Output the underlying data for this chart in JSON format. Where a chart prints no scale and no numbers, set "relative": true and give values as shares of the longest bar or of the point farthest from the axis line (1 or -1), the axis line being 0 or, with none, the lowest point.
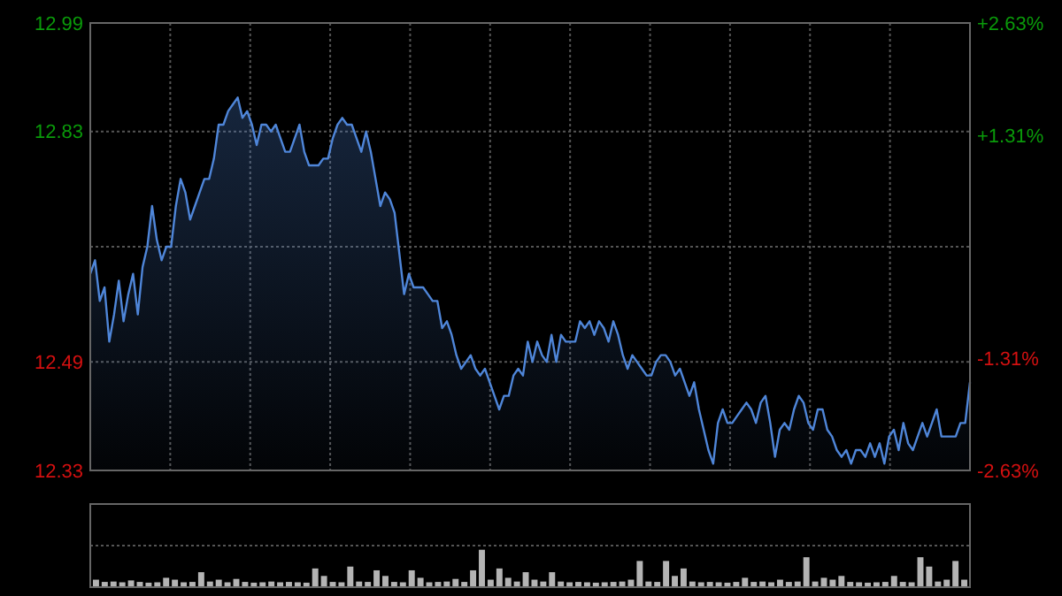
{
  "chart_data": [
    {
      "type": "area",
      "categories": [
        null,
        null,
        null,
        null,
        null,
        null,
        null,
        null,
        null,
        null,
        null,
        null,
        null,
        null,
        null,
        null,
        null,
        null,
        null,
        null,
        null,
        null,
        null,
        null,
        null,
        null,
        null,
        null,
        null,
        null,
        null,
        null,
        null,
        null,
        null,
        null,
        null,
        null,
        null,
        null,
        null,
        null,
        null,
        null,
        null,
        null,
        null,
        null,
        null,
        null,
        null,
        null,
        null,
        null,
        null,
        null,
        null,
        null,
        null,
        null,
        null,
        null,
        null,
        null,
        null,
        null,
        null,
        null,
        null,
        null,
        null,
        null,
        null,
        null,
        null,
        null,
        null,
        null,
        null,
        null,
        null,
        null,
        null,
        null,
        null,
        null,
        null,
        null,
        null,
        null,
        null,
        null,
        null,
        null,
        null,
        null,
        null,
        null,
        null,
        null,
        null,
        null,
        null,
        null,
        null,
        null,
        null,
        null,
        null,
        null,
        null,
        null,
        null,
        null,
        null,
        null,
        null,
        null,
        null,
        null,
        null,
        null,
        null,
        null,
        null,
        null,
        null,
        null,
        null,
        null,
        null,
        null,
        null,
        null,
        null,
        null,
        null,
        null,
        null,
        null,
        null,
        null,
        null,
        null,
        null,
        null,
        null,
        null,
        null,
        null,
        null,
        null,
        null,
        null,
        null,
        null,
        null,
        null,
        null,
        null,
        null,
        null,
        null,
        null,
        null,
        null,
        null,
        null,
        null,
        null,
        null,
        null,
        null,
        null,
        null,
        null,
        null,
        null,
        null,
        null,
        null,
        null,
        null,
        null,
        null,
        null
      ],
      "color": "#4f86d9",
      "values": [
        12.62,
        12.64,
        12.58,
        12.6,
        12.52,
        12.56,
        12.61,
        12.55,
        12.59,
        12.62,
        12.56,
        12.63,
        12.66,
        12.72,
        12.67,
        12.64,
        12.66,
        12.66,
        12.72,
        12.76,
        12.74,
        12.7,
        12.72,
        12.74,
        12.76,
        12.76,
        12.79,
        12.84,
        12.84,
        12.86,
        12.87,
        12.88,
        12.85,
        12.86,
        12.84,
        12.81,
        12.84,
        12.84,
        12.83,
        12.84,
        12.82,
        12.8,
        12.8,
        12.82,
        12.84,
        12.8,
        12.78,
        12.78,
        12.78,
        12.79,
        12.79,
        12.82,
        12.84,
        12.85,
        12.84,
        12.84,
        12.82,
        12.8,
        12.83,
        12.8,
        12.76,
        12.72,
        12.74,
        12.73,
        12.71,
        12.65,
        12.59,
        12.62,
        12.6,
        12.6,
        12.6,
        12.59,
        12.58,
        12.58,
        12.54,
        12.55,
        12.53,
        12.5,
        12.48,
        12.49,
        12.5,
        12.48,
        12.47,
        12.48,
        12.46,
        12.44,
        12.42,
        12.44,
        12.44,
        12.47,
        12.48,
        12.47,
        12.52,
        12.49,
        12.52,
        12.5,
        12.49,
        12.53,
        12.49,
        12.53,
        12.52,
        12.52,
        12.52,
        12.55,
        12.54,
        12.55,
        12.53,
        12.55,
        12.54,
        12.52,
        12.55,
        12.53,
        12.5,
        12.48,
        12.5,
        12.49,
        12.48,
        12.47,
        12.47,
        12.49,
        12.5,
        12.5,
        12.49,
        12.47,
        12.48,
        12.46,
        12.44,
        12.46,
        12.42,
        12.39,
        12.36,
        12.34,
        12.4,
        12.42,
        12.4,
        12.4,
        12.41,
        12.42,
        12.43,
        12.42,
        12.4,
        12.43,
        12.44,
        12.4,
        12.35,
        12.39,
        12.4,
        12.39,
        12.42,
        12.44,
        12.43,
        12.4,
        12.39,
        12.42,
        12.42,
        12.39,
        12.38,
        12.36,
        12.35,
        12.36,
        12.34,
        12.36,
        12.36,
        12.35,
        12.37,
        12.35,
        12.37,
        12.34,
        12.38,
        12.39,
        12.36,
        12.4,
        12.37,
        12.36,
        12.38,
        12.4,
        12.38,
        12.4,
        12.42,
        12.38,
        12.38,
        12.38,
        12.38,
        12.4,
        12.4,
        12.46
      ],
      "ylim": [
        12.33,
        12.99
      ],
      "yticks": [
        12.33,
        12.49,
        {
          "value": 12.66,
          "label": null
        },
        12.83,
        12.99
      ],
      "y2lim": [
        -2.63,
        2.63
      ],
      "y2ticks": [
        {
          "value": -2.63,
          "label": "-2.63%"
        },
        {
          "value": -1.31,
          "label": "-1.31%"
        },
        {
          "value": 1.31,
          "label": "+1.31%"
        },
        {
          "value": 2.63,
          "label": "+2.63%"
        }
      ],
      "grid": true
    },
    {
      "type": "bar",
      "relative": true,
      "color": "#b4b4b4",
      "categories": [
        null,
        null,
        null,
        null,
        null,
        null,
        null,
        null,
        null,
        null,
        null,
        null,
        null,
        null,
        null,
        null,
        null,
        null,
        null,
        null,
        null,
        null,
        null,
        null,
        null,
        null,
        null,
        null,
        null,
        null,
        null,
        null,
        null,
        null,
        null,
        null,
        null,
        null,
        null,
        null,
        null,
        null,
        null,
        null,
        null,
        null,
        null,
        null,
        null,
        null,
        null,
        null,
        null,
        null,
        null,
        null,
        null,
        null,
        null,
        null,
        null,
        null,
        null,
        null,
        null,
        null,
        null,
        null,
        null,
        null,
        null,
        null,
        null,
        null,
        null,
        null,
        null,
        null,
        null,
        null,
        null,
        null,
        null,
        null,
        null,
        null,
        null,
        null,
        null,
        null,
        null,
        null,
        null,
        null,
        null,
        null,
        null,
        null,
        null,
        null
      ],
      "values": [
        0.2,
        0.14,
        0.15,
        0.13,
        0.18,
        0.14,
        0.12,
        0.13,
        0.25,
        0.2,
        0.13,
        0.14,
        0.4,
        0.15,
        0.2,
        0.13,
        0.22,
        0.14,
        0.12,
        0.13,
        0.15,
        0.13,
        0.14,
        0.13,
        0.12,
        0.5,
        0.3,
        0.14,
        0.13,
        0.55,
        0.15,
        0.14,
        0.45,
        0.3,
        0.14,
        0.13,
        0.45,
        0.25,
        0.13,
        0.14,
        0.15,
        0.22,
        0.14,
        0.45,
        1.0,
        0.2,
        0.5,
        0.25,
        0.15,
        0.4,
        0.2,
        0.15,
        0.4,
        0.15,
        0.13,
        0.14,
        0.13,
        0.12,
        0.13,
        0.14,
        0.15,
        0.2,
        0.7,
        0.15,
        0.14,
        0.7,
        0.3,
        0.5,
        0.15,
        0.13,
        0.14,
        0.13,
        0.12,
        0.14,
        0.25,
        0.14,
        0.15,
        0.13,
        0.2,
        0.14,
        0.15,
        0.8,
        0.15,
        0.25,
        0.2,
        0.3,
        0.14,
        0.13,
        0.12,
        0.13,
        0.14,
        0.3,
        0.14,
        0.13,
        0.8,
        0.55,
        0.15,
        0.2,
        0.7,
        0.2
      ]
    }
  ]
}
